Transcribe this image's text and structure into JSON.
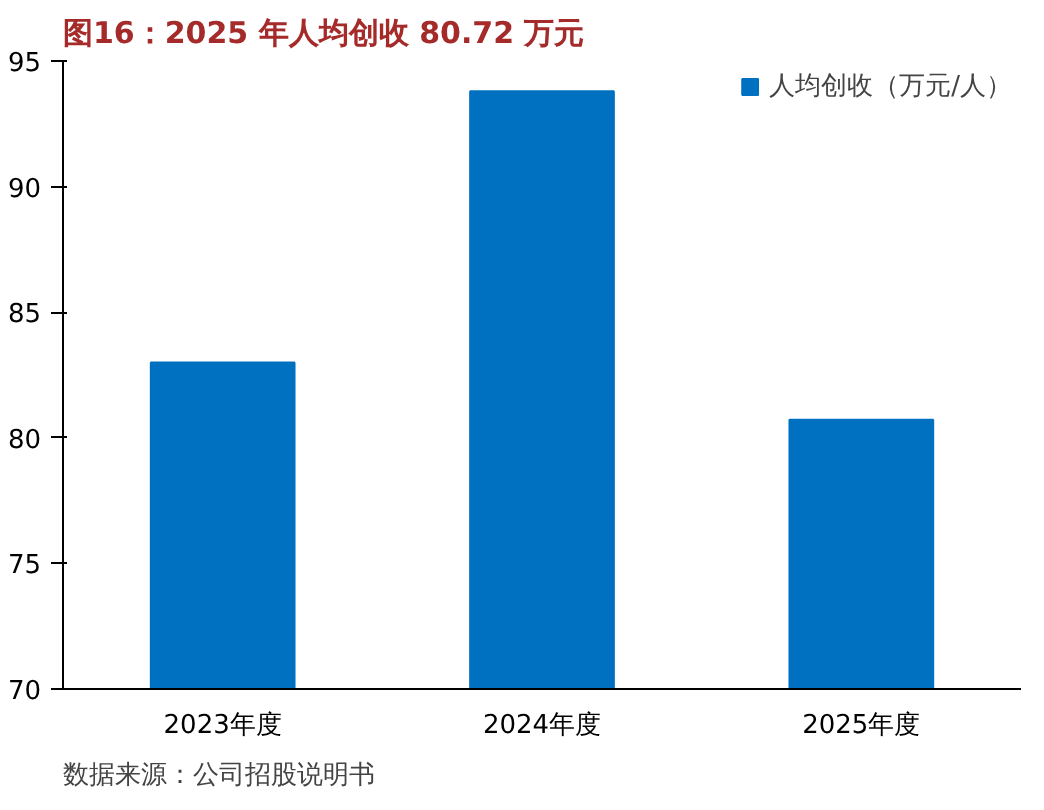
{
  "chart_data": {
    "type": "bar",
    "title": "图16：2025 年人均创收 80.72 万元",
    "categories": [
      "2023年度",
      "2024年度",
      "2025年度"
    ],
    "series": [
      {
        "name": "人均创收（万元/人）",
        "color": "#0070c0",
        "values": [
          83.0,
          93.8,
          80.72
        ]
      }
    ],
    "ylim": [
      70,
      95
    ],
    "yticks": [
      70,
      75,
      80,
      85,
      90,
      95
    ],
    "grid": false,
    "legend": "top right",
    "annotations": [
      "数据来源：公司招股说明书"
    ]
  }
}
